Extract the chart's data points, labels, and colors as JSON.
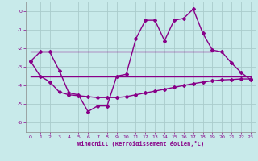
{
  "title": "",
  "xlabel": "Windchill (Refroidissement éolien,°C)",
  "bg_color": "#c8eaea",
  "grid_color": "#b0d8d8",
  "line_color": "#880088",
  "xlim": [
    -0.5,
    23.5
  ],
  "ylim": [
    -6.5,
    0.5
  ],
  "yticks": [
    0,
    -1,
    -2,
    -3,
    -4,
    -5,
    -6
  ],
  "xticks": [
    0,
    1,
    2,
    3,
    4,
    5,
    6,
    7,
    8,
    9,
    10,
    11,
    12,
    13,
    14,
    15,
    16,
    17,
    18,
    19,
    20,
    21,
    22,
    23
  ],
  "line1_x": [
    0,
    1,
    2,
    3,
    4,
    5,
    6,
    7,
    8,
    9,
    10,
    11,
    12,
    13,
    14,
    15,
    16,
    17,
    18,
    19,
    20,
    21,
    22,
    23
  ],
  "line1_y": [
    -2.7,
    -2.2,
    -2.2,
    -3.2,
    -4.4,
    -4.5,
    -5.4,
    -5.1,
    -5.1,
    -3.5,
    -3.4,
    -1.5,
    -0.5,
    -0.5,
    -1.6,
    -0.5,
    -0.4,
    0.1,
    -1.2,
    -2.1,
    -2.2,
    -2.8,
    -3.3,
    -3.7
  ],
  "line2_x": [
    0,
    23
  ],
  "line2_y": [
    -3.5,
    -3.5
  ],
  "line3_x": [
    0,
    19
  ],
  "line3_y": [
    -2.2,
    -2.2
  ],
  "line4_x": [
    0,
    1,
    2,
    3,
    4,
    5,
    6,
    7,
    8,
    9,
    10,
    11,
    12,
    13,
    14,
    15,
    16,
    17,
    18,
    19,
    20,
    21,
    22,
    23
  ],
  "line4_y": [
    -2.7,
    -3.5,
    -3.8,
    -4.35,
    -4.5,
    -4.55,
    -4.6,
    -4.65,
    -4.65,
    -4.65,
    -4.6,
    -4.5,
    -4.4,
    -4.3,
    -4.2,
    -4.1,
    -4.0,
    -3.9,
    -3.82,
    -3.75,
    -3.7,
    -3.68,
    -3.65,
    -3.65
  ]
}
